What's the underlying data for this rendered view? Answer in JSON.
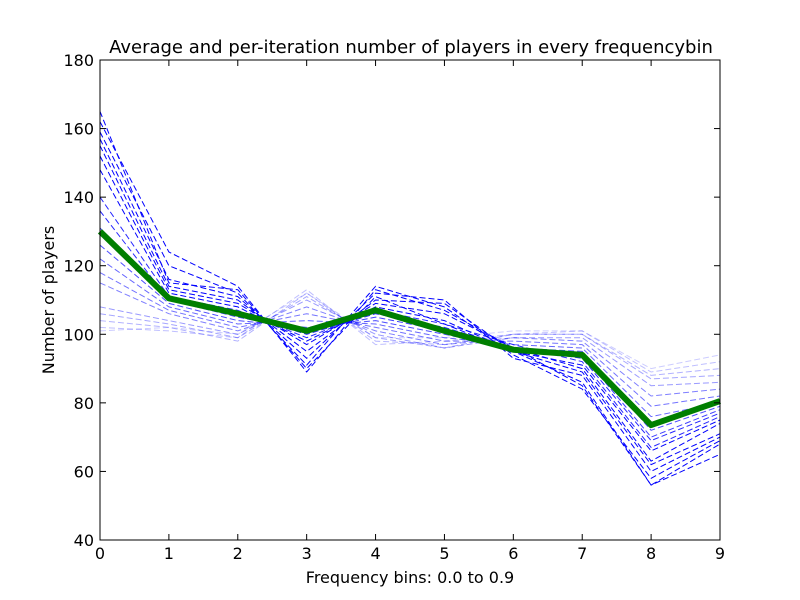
{
  "chart_data": {
    "type": "line",
    "title": "Average and per-iteration number of players in every frequencybin",
    "xlabel": "Frequency bins: 0.0 to 0.9",
    "ylabel": "Number of players",
    "xlim": [
      0,
      9
    ],
    "ylim": [
      40,
      180
    ],
    "x_ticks": [
      "0",
      "1",
      "2",
      "3",
      "4",
      "5",
      "6",
      "7",
      "8",
      "9"
    ],
    "y_ticks": [
      "40",
      "60",
      "80",
      "100",
      "120",
      "140",
      "160",
      "180"
    ],
    "x": [
      0,
      1,
      2,
      3,
      4,
      5,
      6,
      7,
      8,
      9
    ],
    "grid": false,
    "legend": "none",
    "average": {
      "color": "#007f00",
      "values": [
        130,
        110.5,
        106,
        101,
        107,
        101,
        95.5,
        94,
        73.5,
        80.5
      ]
    },
    "iterations": {
      "color": "#0000ff",
      "series": [
        {
          "values": [
            165,
            115,
            113,
            90,
            111,
            103,
            95,
            86,
            56,
            65
          ],
          "dashed": true,
          "opacity": 1.0
        },
        {
          "values": [
            162,
            124,
            114,
            89,
            113,
            107,
            96,
            85,
            56,
            68
          ],
          "dashed": true,
          "opacity": 1.0
        },
        {
          "values": [
            159,
            120,
            112,
            91,
            114,
            108,
            94,
            84,
            58,
            69
          ],
          "dashed": true,
          "opacity": 1.0
        },
        {
          "values": [
            157,
            116,
            111,
            93,
            112,
            110,
            93,
            88,
            60,
            70
          ],
          "dashed": true,
          "opacity": 1.0
        },
        {
          "values": [
            155,
            114,
            110,
            95,
            110,
            109,
            95,
            89,
            62,
            71
          ],
          "dashed": true,
          "opacity": 1.0
        },
        {
          "values": [
            152,
            113,
            109,
            97,
            109,
            106,
            96,
            90,
            63,
            74
          ],
          "dashed": true,
          "opacity": 1.0
        },
        {
          "values": [
            148,
            112,
            108,
            98,
            108,
            104,
            95,
            91,
            66,
            75
          ],
          "dashed": true,
          "opacity": 1.0
        },
        {
          "values": [
            140,
            111,
            107,
            99,
            107,
            103,
            97,
            92,
            67,
            76
          ],
          "dashed": true,
          "opacity": 0.85
        },
        {
          "values": [
            136,
            110,
            106,
            100,
            106,
            102,
            96,
            93,
            69,
            77
          ],
          "dashed": true,
          "opacity": 0.85
        },
        {
          "values": [
            131,
            110,
            105,
            101,
            105,
            101,
            95,
            94,
            70,
            78
          ],
          "dashed": true,
          "opacity": 0.75
        },
        {
          "values": [
            126,
            109,
            104,
            102,
            104,
            100,
            96,
            95,
            72,
            79
          ],
          "dashed": true,
          "opacity": 0.7
        },
        {
          "values": [
            122,
            108,
            103,
            104,
            103,
            99,
            97,
            96,
            76,
            80
          ],
          "dashed": true,
          "opacity": 0.6
        },
        {
          "values": [
            118,
            107,
            102,
            106,
            102,
            98,
            98,
            97,
            79,
            82
          ],
          "dashed": true,
          "opacity": 0.55
        },
        {
          "values": [
            115,
            106,
            101,
            108,
            101,
            97,
            99,
            98,
            82,
            84
          ],
          "dashed": true,
          "opacity": 0.5
        },
        {
          "values": [
            108,
            104,
            100,
            110,
            100,
            96,
            99,
            99,
            85,
            86
          ],
          "dashed": true,
          "opacity": 0.4
        },
        {
          "values": [
            106,
            103,
            99,
            111,
            99,
            96,
            100,
            100,
            87,
            88
          ],
          "dashed": true,
          "opacity": 0.35
        },
        {
          "values": [
            104,
            102,
            98,
            112,
            98,
            97,
            100,
            100,
            88,
            90
          ],
          "dashed": true,
          "opacity": 0.3
        },
        {
          "values": [
            102,
            101,
            99,
            113,
            97,
            98,
            100,
            101,
            89,
            92
          ],
          "dashed": true,
          "opacity": 0.25
        },
        {
          "values": [
            101,
            102,
            100,
            112,
            99,
            99,
            101,
            101,
            90,
            94
          ],
          "dashed": true,
          "opacity": 0.2
        }
      ]
    }
  }
}
